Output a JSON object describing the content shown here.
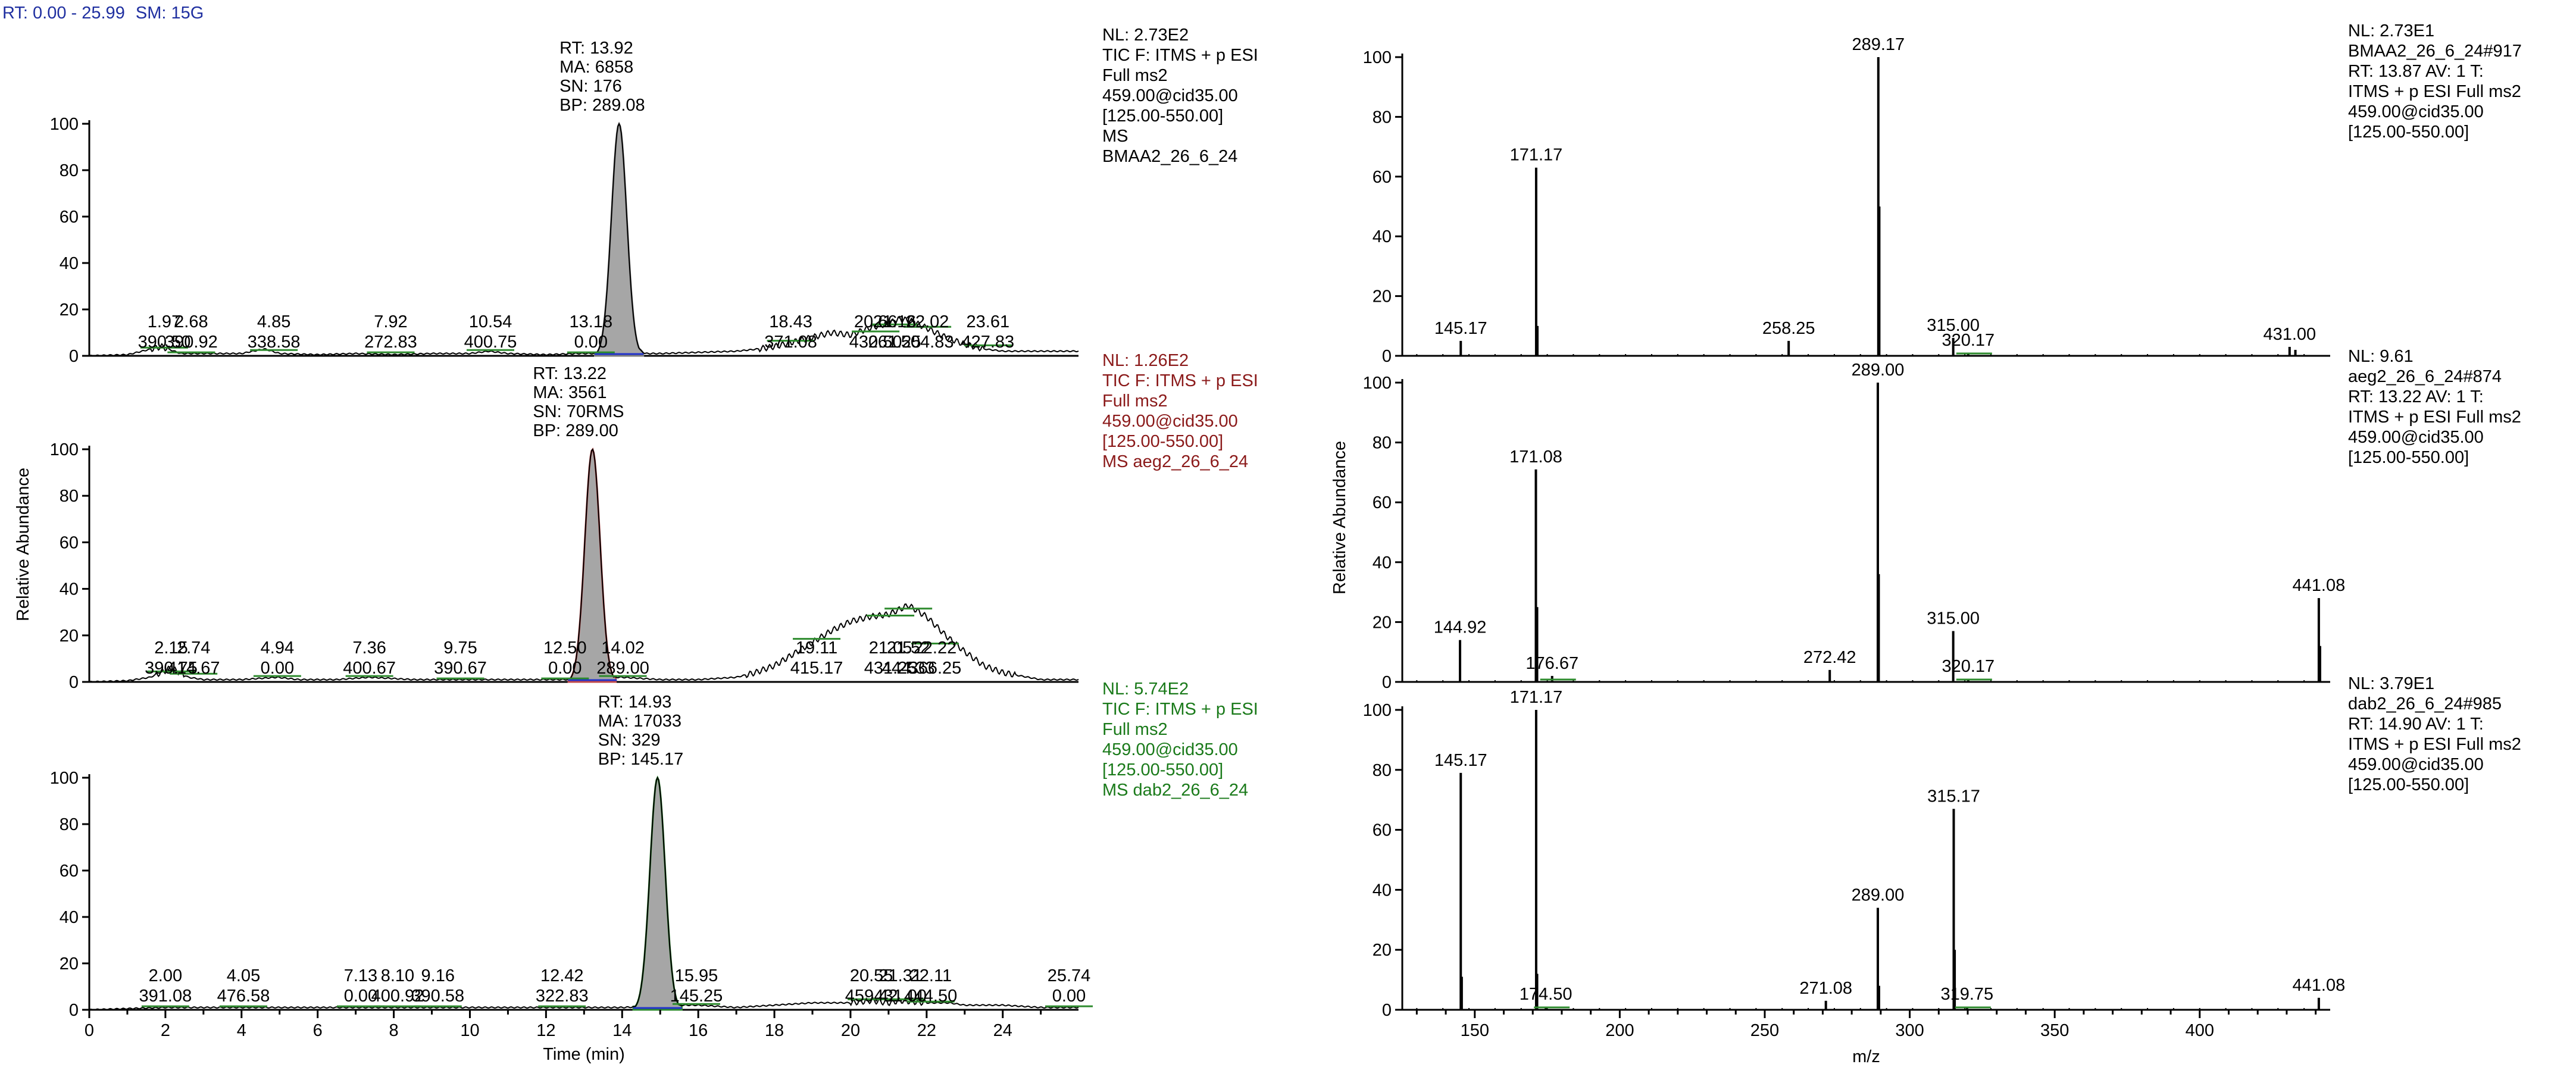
{
  "header": {
    "rt_range": "RT: 0.00 - 25.99",
    "smoothing": "SM: 15G"
  },
  "chart_data": [
    {
      "type": "line",
      "panel": "chromatogram",
      "series_name": "BMAA2_26_6_24",
      "color": "#808080",
      "ylim": [
        0,
        100
      ],
      "xlim": [
        0,
        25.99
      ],
      "peak": {
        "x": 13.92,
        "y": 100,
        "sigma": 0.2
      },
      "noise": [
        [
          0,
          0
        ],
        [
          1,
          0.5
        ],
        [
          1.9,
          4
        ],
        [
          2.4,
          1
        ],
        [
          3,
          1
        ],
        [
          4,
          1
        ],
        [
          4.6,
          3
        ],
        [
          5,
          1
        ],
        [
          6,
          0.5
        ],
        [
          7,
          1
        ],
        [
          8,
          0.5
        ],
        [
          9,
          1
        ],
        [
          10,
          1
        ],
        [
          10.5,
          2
        ],
        [
          11,
          1
        ],
        [
          12,
          0.5
        ],
        [
          12.8,
          1
        ],
        [
          13.3,
          1
        ],
        [
          13.5,
          4
        ],
        [
          14.35,
          4
        ],
        [
          14.6,
          1
        ],
        [
          15,
          1
        ],
        [
          16,
          1.5
        ],
        [
          17,
          2
        ],
        [
          17.6,
          3
        ],
        [
          18,
          4
        ],
        [
          18.5,
          6
        ],
        [
          19,
          8
        ],
        [
          19.5,
          10
        ],
        [
          20,
          9
        ],
        [
          20.5,
          12
        ],
        [
          21,
          14
        ],
        [
          21.3,
          16
        ],
        [
          21.6,
          15
        ],
        [
          22,
          12
        ],
        [
          22.5,
          8
        ],
        [
          23,
          5
        ],
        [
          23.5,
          3
        ],
        [
          24,
          2
        ],
        [
          25,
          2
        ],
        [
          25.99,
          2
        ]
      ],
      "peak_annotation": [
        "RT: 13.92",
        "MA: 6858",
        "SN: 176",
        "BP: 289.08"
      ],
      "labels": [
        {
          "x": 1.97,
          "y": 3,
          "rt": "1.97",
          "mz": "390.50"
        },
        {
          "x": 2.68,
          "y": 1,
          "rt": "2.68",
          "mz": "390.92"
        },
        {
          "x": 4.85,
          "y": 2,
          "rt": "4.85",
          "mz": "338.58"
        },
        {
          "x": 7.92,
          "y": 1,
          "rt": "7.92",
          "mz": "272.83"
        },
        {
          "x": 10.54,
          "y": 2,
          "rt": "10.54",
          "mz": "400.75"
        },
        {
          "x": 13.18,
          "y": 1,
          "rt": "13.18",
          "mz": "0.00"
        },
        {
          "x": 18.43,
          "y": 6,
          "rt": "18.43",
          "mz": "371.08"
        },
        {
          "x": 20.66,
          "y": 10,
          "rt": "20.66",
          "mz": "430.50"
        },
        {
          "x": 21.16,
          "y": 13,
          "rt": "21.16",
          "mz": "261.25"
        },
        {
          "x": 22.02,
          "y": 12,
          "rt": "22.02",
          "mz": "504.83"
        },
        {
          "x": 23.61,
          "y": 4,
          "rt": "23.61",
          "mz": "427.83"
        }
      ],
      "info": {
        "color": "#000000",
        "lines": [
          "NL: 2.73E2",
          "TIC F: ITMS + p ESI",
          "Full ms2",
          "459.00@cid35.00",
          "[125.00-550.00]",
          "MS",
          "BMAA2_26_6_24"
        ]
      }
    },
    {
      "type": "line",
      "panel": "chromatogram",
      "series_name": "aeg2_26_6_24",
      "color": "#c24a4a",
      "ylim": [
        0,
        100
      ],
      "xlim": [
        0,
        25.99
      ],
      "peak": {
        "x": 13.22,
        "y": 100,
        "sigma": 0.2
      },
      "noise": [
        [
          0,
          0
        ],
        [
          1,
          0.5
        ],
        [
          1.6,
          2
        ],
        [
          2.15,
          6
        ],
        [
          2.6,
          2
        ],
        [
          3,
          1
        ],
        [
          4,
          1
        ],
        [
          4.94,
          2
        ],
        [
          5.5,
          1
        ],
        [
          6.5,
          1
        ],
        [
          7.36,
          2
        ],
        [
          8.5,
          1
        ],
        [
          9.75,
          1
        ],
        [
          10.5,
          1
        ],
        [
          11.5,
          1
        ],
        [
          12.5,
          1
        ],
        [
          13.6,
          2
        ],
        [
          14,
          2
        ],
        [
          15,
          1
        ],
        [
          16,
          1
        ],
        [
          17,
          2
        ],
        [
          17.5,
          4
        ],
        [
          18,
          7
        ],
        [
          18.5,
          12
        ],
        [
          19,
          17
        ],
        [
          19.5,
          22
        ],
        [
          20,
          26
        ],
        [
          20.5,
          28
        ],
        [
          21,
          29
        ],
        [
          21.52,
          33
        ],
        [
          22,
          28
        ],
        [
          22.5,
          20
        ],
        [
          23,
          13
        ],
        [
          23.5,
          7
        ],
        [
          24,
          4
        ],
        [
          25,
          1
        ],
        [
          25.99,
          1
        ]
      ],
      "peak_annotation": [
        "RT: 13.22",
        "MA: 3561",
        "SN: 70RMS",
        "BP: 289.00"
      ],
      "labels": [
        {
          "x": 2.15,
          "y": 4,
          "rt": "2.15",
          "mz": "390.75"
        },
        {
          "x": 2.74,
          "y": 3,
          "rt": "2.74",
          "mz": "414.67"
        },
        {
          "x": 4.94,
          "y": 2,
          "rt": "4.94",
          "mz": "0.00"
        },
        {
          "x": 7.36,
          "y": 2,
          "rt": "7.36",
          "mz": "400.67"
        },
        {
          "x": 9.75,
          "y": 1,
          "rt": "9.75",
          "mz": "390.67"
        },
        {
          "x": 12.5,
          "y": 1,
          "rt": "12.50",
          "mz": "0.00"
        },
        {
          "x": 14.02,
          "y": 2,
          "rt": "14.02",
          "mz": "289.00"
        },
        {
          "x": 19.11,
          "y": 18,
          "rt": "19.11",
          "mz": "415.17"
        },
        {
          "x": 21.05,
          "y": 28,
          "rt": "21.05",
          "mz": "431.25"
        },
        {
          "x": 21.52,
          "y": 31,
          "rt": "21.52",
          "mz": "444.33"
        },
        {
          "x": 22.22,
          "y": 16,
          "rt": "22.22",
          "mz": "366.25"
        }
      ],
      "info": {
        "color": "#8b1a1a",
        "lines": [
          "NL: 1.26E2",
          "TIC F: ITMS + p ESI",
          "Full ms2",
          "459.00@cid35.00",
          "[125.00-550.00]",
          "MS aeg2_26_6_24"
        ]
      }
    },
    {
      "type": "line",
      "panel": "chromatogram",
      "series_name": "dab2_26_6_24",
      "color": "#2e8b2e",
      "ylim": [
        0,
        100
      ],
      "xlim": [
        0,
        25.99
      ],
      "xlabel": "Time (min)",
      "xticks": [
        0,
        2,
        4,
        6,
        8,
        10,
        12,
        14,
        16,
        18,
        20,
        22,
        24
      ],
      "peak": {
        "x": 14.93,
        "y": 100,
        "sigma": 0.2
      },
      "noise": [
        [
          0,
          0
        ],
        [
          1,
          0.5
        ],
        [
          2,
          1
        ],
        [
          3,
          1
        ],
        [
          4,
          1
        ],
        [
          5,
          1
        ],
        [
          6,
          1
        ],
        [
          7,
          1
        ],
        [
          8,
          1
        ],
        [
          9,
          1
        ],
        [
          10,
          1
        ],
        [
          11,
          1
        ],
        [
          12,
          1
        ],
        [
          13,
          1
        ],
        [
          14,
          1
        ],
        [
          15.6,
          2
        ],
        [
          16,
          2
        ],
        [
          17,
          1
        ],
        [
          18,
          2
        ],
        [
          19,
          3
        ],
        [
          20,
          3
        ],
        [
          20.55,
          4
        ],
        [
          21,
          3
        ],
        [
          21.3,
          4
        ],
        [
          22,
          3
        ],
        [
          22.6,
          3
        ],
        [
          23,
          2
        ],
        [
          24,
          2
        ],
        [
          25,
          1
        ],
        [
          25.99,
          1
        ]
      ],
      "peak_annotation": [
        "RT: 14.93",
        "MA: 17033",
        "SN: 329",
        "BP: 145.17"
      ],
      "labels": [
        {
          "x": 2.0,
          "y": 1,
          "rt": "2.00",
          "mz": "391.08"
        },
        {
          "x": 4.05,
          "y": 1,
          "rt": "4.05",
          "mz": "476.58"
        },
        {
          "x": 7.13,
          "y": 1,
          "rt": "7.13",
          "mz": "0.00"
        },
        {
          "x": 8.1,
          "y": 1,
          "rt": "8.10",
          "mz": "400.92"
        },
        {
          "x": 9.16,
          "y": 1,
          "rt": "9.16",
          "mz": "390.58"
        },
        {
          "x": 12.42,
          "y": 1,
          "rt": "12.42",
          "mz": "322.83"
        },
        {
          "x": 15.95,
          "y": 2,
          "rt": "15.95",
          "mz": "145.25"
        },
        {
          "x": 20.55,
          "y": 4,
          "rt": "20.55",
          "mz": "459.42"
        },
        {
          "x": 21.31,
          "y": 4,
          "rt": "21.31",
          "mz": "431.00"
        },
        {
          "x": 22.11,
          "y": 3,
          "rt": "22.11",
          "mz": "444.50"
        },
        {
          "x": 25.74,
          "y": 1,
          "rt": "25.74",
          "mz": "0.00"
        }
      ],
      "info": {
        "color": "#1a7a1a",
        "lines": [
          "NL: 5.74E2",
          "TIC F: ITMS + p ESI",
          "Full ms2",
          "459.00@cid35.00",
          "[125.00-550.00]",
          "MS dab2_26_6_24"
        ]
      }
    },
    {
      "type": "bar",
      "panel": "spectrum",
      "series_name": "BMAA2_26_6_24#917",
      "ylim": [
        0,
        100
      ],
      "xlim": [
        125,
        445
      ],
      "peaks": [
        [
          145.17,
          5
        ],
        [
          171.17,
          63
        ],
        [
          171.6,
          10
        ],
        [
          258.25,
          5
        ],
        [
          289.17,
          100
        ],
        [
          289.5,
          50
        ],
        [
          315.0,
          6
        ],
        [
          320.17,
          1
        ],
        [
          431.0,
          3
        ],
        [
          433,
          2
        ]
      ],
      "labels": [
        [
          145.17,
          5,
          "145.17"
        ],
        [
          171.17,
          63,
          "171.17"
        ],
        [
          258.25,
          5,
          "258.25"
        ],
        [
          289.17,
          100,
          "289.17"
        ],
        [
          315.0,
          6,
          "315.00"
        ],
        [
          320.17,
          1,
          "320.17"
        ],
        [
          431.0,
          3,
          "431.00"
        ]
      ],
      "info": [
        "NL: 2.73E1",
        "BMAA2_26_6_24#917",
        "RT: 13.87  AV: 1 T:",
        "ITMS + p ESI Full ms2",
        "459.00@cid35.00",
        "[125.00-550.00]"
      ]
    },
    {
      "type": "bar",
      "panel": "spectrum",
      "series_name": "aeg2_26_6_24#874",
      "ylim": [
        0,
        100
      ],
      "xlim": [
        125,
        445
      ],
      "ylabel": "Relative Abundance",
      "peaks": [
        [
          144.92,
          14
        ],
        [
          171.08,
          71
        ],
        [
          171.5,
          25
        ],
        [
          176.67,
          2
        ],
        [
          272.42,
          4
        ],
        [
          289.0,
          100
        ],
        [
          289.3,
          36
        ],
        [
          315.0,
          17
        ],
        [
          320.17,
          1
        ],
        [
          441.08,
          28
        ],
        [
          441.5,
          12
        ]
      ],
      "labels": [
        [
          144.92,
          14,
          "144.92"
        ],
        [
          171.08,
          71,
          "171.08"
        ],
        [
          176.67,
          2,
          "176.67"
        ],
        [
          272.42,
          4,
          "272.42"
        ],
        [
          289.0,
          100,
          "289.00"
        ],
        [
          315.0,
          17,
          "315.00"
        ],
        [
          320.17,
          1,
          "320.17"
        ],
        [
          441.08,
          28,
          "441.08"
        ]
      ],
      "info": [
        "NL: 9.61",
        "aeg2_26_6_24#874",
        "RT: 13.22  AV: 1 T:",
        "ITMS + p ESI Full ms2",
        "459.00@cid35.00",
        "[125.00-550.00]"
      ]
    },
    {
      "type": "bar",
      "panel": "spectrum",
      "series_name": "dab2_26_6_24#985",
      "ylim": [
        0,
        100
      ],
      "xlim": [
        125,
        445
      ],
      "xlabel": "m/z",
      "xticks": [
        150,
        200,
        250,
        300,
        350,
        400
      ],
      "peaks": [
        [
          145.17,
          79
        ],
        [
          145.5,
          11
        ],
        [
          171.17,
          100
        ],
        [
          171.5,
          12
        ],
        [
          174.5,
          1
        ],
        [
          271.08,
          3
        ],
        [
          289.0,
          34
        ],
        [
          289.4,
          8
        ],
        [
          315.17,
          67
        ],
        [
          315.5,
          20
        ],
        [
          319.75,
          1
        ],
        [
          441.08,
          4
        ]
      ],
      "labels": [
        [
          145.17,
          79,
          "145.17"
        ],
        [
          171.17,
          100,
          "171.17"
        ],
        [
          174.5,
          1,
          "174.50"
        ],
        [
          271.08,
          3,
          "271.08"
        ],
        [
          289.0,
          34,
          "289.00"
        ],
        [
          315.17,
          67,
          "315.17"
        ],
        [
          319.75,
          1,
          "319.75"
        ],
        [
          441.08,
          4,
          "441.08"
        ]
      ],
      "info": [
        "NL: 3.79E1",
        "dab2_26_6_24#985",
        "RT: 14.90  AV: 1 T:",
        "ITMS + p ESI Full ms2",
        "459.00@cid35.00",
        "[125.00-550.00]"
      ]
    }
  ],
  "left_ylabel": "Relative Abundance",
  "yticks": [
    0,
    20,
    40,
    60,
    80,
    100
  ]
}
